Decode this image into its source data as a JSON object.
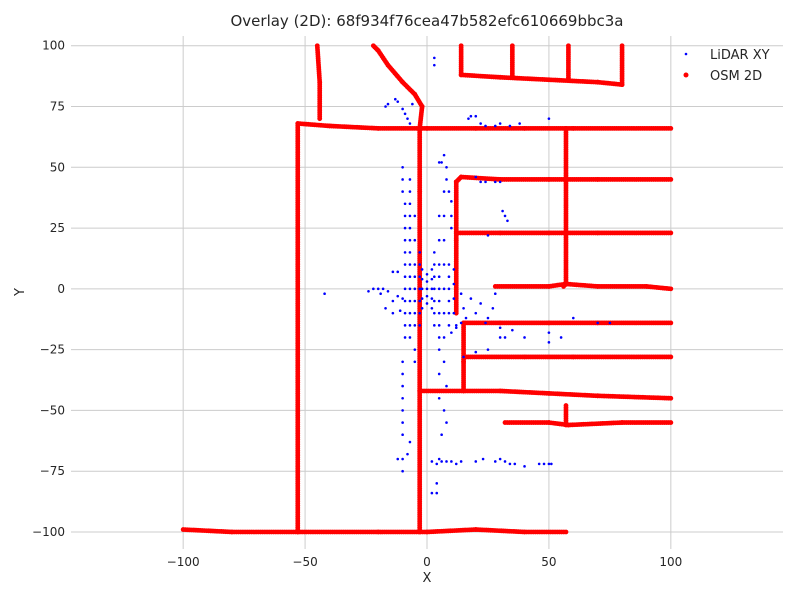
{
  "chart_data": {
    "type": "scatter",
    "title": "Overlay (2D): 68f934f76cea47b582efc610669bbc3a",
    "xlabel": "X",
    "ylabel": "Y",
    "xlim": [
      -146,
      146
    ],
    "ylim": [
      -107,
      104
    ],
    "xticks": [
      -100,
      -50,
      0,
      50,
      100
    ],
    "xtick_labels": [
      "−100",
      "−50",
      "0",
      "50",
      "100"
    ],
    "yticks": [
      -100,
      -75,
      -50,
      -25,
      0,
      25,
      50,
      75,
      100
    ],
    "ytick_labels": [
      "−100",
      "−75",
      "−50",
      "−25",
      "0",
      "25",
      "50",
      "75",
      "100"
    ],
    "grid": true,
    "legend_position": "top-right",
    "series": [
      {
        "name": "LiDAR XY",
        "color": "#0000ff",
        "marker_size": "small",
        "points": [
          [
            -10,
            50
          ],
          [
            -10,
            45
          ],
          [
            -10,
            40
          ],
          [
            -9,
            35
          ],
          [
            -9,
            30
          ],
          [
            -9,
            25
          ],
          [
            -9,
            20
          ],
          [
            -9,
            15
          ],
          [
            -9,
            10
          ],
          [
            -9,
            5
          ],
          [
            -9,
            0
          ],
          [
            -9,
            -5
          ],
          [
            -9,
            -10
          ],
          [
            -9,
            -15
          ],
          [
            -9,
            -20
          ],
          [
            -10,
            -30
          ],
          [
            -10,
            -35
          ],
          [
            -10,
            -40
          ],
          [
            -10,
            -45
          ],
          [
            -10,
            -50
          ],
          [
            -10,
            -55
          ],
          [
            -10,
            -60
          ],
          [
            -10,
            -70
          ],
          [
            -10,
            -75
          ],
          [
            -7,
            45
          ],
          [
            -7,
            40
          ],
          [
            -7,
            35
          ],
          [
            -7,
            30
          ],
          [
            -7,
            25
          ],
          [
            -7,
            20
          ],
          [
            -7,
            15
          ],
          [
            -7,
            10
          ],
          [
            -7,
            5
          ],
          [
            -7,
            0
          ],
          [
            -7,
            -5
          ],
          [
            -7,
            -10
          ],
          [
            -7,
            -15
          ],
          [
            -7,
            -20
          ],
          [
            -5,
            30
          ],
          [
            -5,
            20
          ],
          [
            -5,
            10
          ],
          [
            -5,
            5
          ],
          [
            -5,
            0
          ],
          [
            -5,
            -5
          ],
          [
            -5,
            -10
          ],
          [
            -5,
            -15
          ],
          [
            -5,
            -25
          ],
          [
            -5,
            -30
          ],
          [
            -3,
            15
          ],
          [
            -3,
            10
          ],
          [
            -3,
            5
          ],
          [
            -3,
            0
          ],
          [
            -3,
            -5
          ],
          [
            -3,
            -10
          ],
          [
            -3,
            -15
          ],
          [
            -2,
            8
          ],
          [
            -2,
            4
          ],
          [
            -2,
            0
          ],
          [
            -2,
            -4
          ],
          [
            -2,
            -8
          ],
          [
            0,
            6
          ],
          [
            0,
            3
          ],
          [
            0,
            0
          ],
          [
            0,
            -3
          ],
          [
            0,
            -6
          ],
          [
            2,
            8
          ],
          [
            2,
            4
          ],
          [
            2,
            0
          ],
          [
            2,
            -4
          ],
          [
            2,
            -8
          ],
          [
            3,
            15
          ],
          [
            3,
            10
          ],
          [
            3,
            5
          ],
          [
            3,
            0
          ],
          [
            3,
            -5
          ],
          [
            3,
            -10
          ],
          [
            3,
            -15
          ],
          [
            5,
            30
          ],
          [
            5,
            20
          ],
          [
            5,
            10
          ],
          [
            5,
            5
          ],
          [
            5,
            0
          ],
          [
            5,
            -5
          ],
          [
            5,
            -10
          ],
          [
            5,
            -15
          ],
          [
            5,
            -20
          ],
          [
            5,
            -25
          ],
          [
            5,
            -35
          ],
          [
            5,
            -45
          ],
          [
            7,
            40
          ],
          [
            7,
            30
          ],
          [
            7,
            20
          ],
          [
            7,
            10
          ],
          [
            7,
            0
          ],
          [
            7,
            -10
          ],
          [
            7,
            -20
          ],
          [
            7,
            -30
          ],
          [
            9,
            10
          ],
          [
            9,
            5
          ],
          [
            9,
            0
          ],
          [
            9,
            -5
          ],
          [
            9,
            -10
          ],
          [
            9,
            -15
          ],
          [
            11,
            8
          ],
          [
            11,
            2
          ],
          [
            11,
            -4
          ],
          [
            11,
            -10
          ],
          [
            12,
            -15
          ],
          [
            14,
            -2
          ],
          [
            15,
            -8
          ],
          [
            18,
            -4
          ],
          [
            20,
            -10
          ],
          [
            22,
            -6
          ],
          [
            25,
            -12
          ],
          [
            24,
            -14
          ],
          [
            27,
            -8
          ],
          [
            30,
            -16
          ],
          [
            32,
            -20
          ],
          [
            28,
            -2
          ],
          [
            -18,
            0
          ],
          [
            -16,
            -1
          ],
          [
            -14,
            7
          ],
          [
            -12,
            7
          ],
          [
            -12,
            -3
          ],
          [
            -14,
            -5
          ],
          [
            -20,
            0
          ],
          [
            -22,
            0
          ],
          [
            -24,
            -1
          ],
          [
            -19,
            -2
          ],
          [
            -17,
            -8
          ],
          [
            -14,
            -10
          ],
          [
            -11,
            -9
          ],
          [
            -10,
            -4
          ],
          [
            -12,
            77
          ],
          [
            -13,
            78
          ],
          [
            -16,
            76
          ],
          [
            -17,
            75
          ],
          [
            -10,
            74
          ],
          [
            -9,
            72
          ],
          [
            -8,
            70
          ],
          [
            -7,
            68
          ],
          [
            -6,
            76
          ],
          [
            3,
            92
          ],
          [
            3,
            95
          ],
          [
            5,
            52
          ],
          [
            6,
            52
          ],
          [
            7,
            55
          ],
          [
            8,
            50
          ],
          [
            8,
            45
          ],
          [
            9,
            40
          ],
          [
            10,
            36
          ],
          [
            10,
            30
          ],
          [
            10,
            25
          ],
          [
            8,
            -40
          ],
          [
            7,
            -50
          ],
          [
            8,
            -55
          ],
          [
            6,
            -60
          ],
          [
            5,
            -70
          ],
          [
            4,
            -80
          ],
          [
            4,
            -84
          ],
          [
            2,
            -84
          ],
          [
            2,
            -71
          ],
          [
            4,
            -72
          ],
          [
            6,
            -71
          ],
          [
            8,
            -71
          ],
          [
            10,
            -71
          ],
          [
            12,
            -72
          ],
          [
            14,
            -71
          ],
          [
            20,
            -71
          ],
          [
            23,
            -70
          ],
          [
            28,
            -71
          ],
          [
            30,
            -70
          ],
          [
            32,
            -71
          ],
          [
            34,
            -72
          ],
          [
            36,
            -72
          ],
          [
            40,
            -73
          ],
          [
            46,
            -72
          ],
          [
            48,
            -72
          ],
          [
            50,
            -72
          ],
          [
            51,
            -72
          ],
          [
            17,
            70
          ],
          [
            18,
            71
          ],
          [
            20,
            71
          ],
          [
            22,
            68
          ],
          [
            24,
            67
          ],
          [
            28,
            67
          ],
          [
            30,
            68
          ],
          [
            34,
            67
          ],
          [
            38,
            68
          ],
          [
            50,
            70
          ],
          [
            20,
            46
          ],
          [
            22,
            44
          ],
          [
            24,
            44
          ],
          [
            28,
            44
          ],
          [
            30,
            44
          ],
          [
            25,
            22
          ],
          [
            31,
            32
          ],
          [
            32,
            30
          ],
          [
            33,
            28
          ],
          [
            10,
            -18
          ],
          [
            12,
            -16
          ],
          [
            14,
            -14
          ],
          [
            16,
            -12
          ],
          [
            15,
            -28
          ],
          [
            20,
            -26
          ],
          [
            25,
            -25
          ],
          [
            30,
            -20
          ],
          [
            35,
            -17
          ],
          [
            40,
            -20
          ],
          [
            50,
            -18
          ],
          [
            50,
            -22
          ],
          [
            55,
            -20
          ],
          [
            60,
            -12
          ],
          [
            70,
            -14
          ],
          [
            75,
            -14
          ],
          [
            -42,
            -2
          ],
          [
            -7,
            -63
          ],
          [
            -12,
            -70
          ],
          [
            -8,
            -68
          ]
        ]
      },
      {
        "name": "OSM 2D",
        "color": "#ff0000",
        "marker_size": "medium",
        "polylines": [
          [
            [
              -45,
              100
            ],
            [
              -44,
              85
            ],
            [
              -44,
              70
            ]
          ],
          [
            [
              -22,
              100
            ],
            [
              -20,
              98
            ],
            [
              -16,
              92
            ],
            [
              -10,
              85
            ],
            [
              -5,
              80
            ],
            [
              -2,
              75
            ],
            [
              -3,
              66
            ],
            [
              -3,
              40
            ],
            [
              -3,
              0
            ],
            [
              -3,
              -50
            ],
            [
              -3,
              -100
            ]
          ],
          [
            [
              -53,
              68
            ],
            [
              -53,
              -100
            ]
          ],
          [
            [
              -53,
              68
            ],
            [
              -40,
              67
            ],
            [
              -20,
              66
            ],
            [
              0,
              66
            ],
            [
              20,
              66
            ],
            [
              40,
              66
            ],
            [
              60,
              66
            ],
            [
              100,
              66
            ]
          ],
          [
            [
              -100,
              -99
            ],
            [
              -80,
              -100
            ],
            [
              -53,
              -100
            ],
            [
              -20,
              -100
            ],
            [
              0,
              -100
            ],
            [
              20,
              -99
            ],
            [
              40,
              -100
            ],
            [
              57,
              -100
            ]
          ],
          [
            [
              14,
              100
            ],
            [
              14,
              88
            ],
            [
              30,
              87
            ],
            [
              50,
              86
            ],
            [
              70,
              85
            ],
            [
              80,
              84
            ],
            [
              80,
              100
            ]
          ],
          [
            [
              35,
              100
            ],
            [
              35,
              87
            ]
          ],
          [
            [
              58,
              100
            ],
            [
              58,
              86
            ]
          ],
          [
            [
              12,
              44
            ],
            [
              14,
              46
            ],
            [
              30,
              45
            ],
            [
              50,
              45
            ],
            [
              70,
              45
            ],
            [
              100,
              45
            ]
          ],
          [
            [
              12,
              44
            ],
            [
              12,
              20
            ],
            [
              12,
              -10
            ]
          ],
          [
            [
              12,
              23
            ],
            [
              30,
              23
            ],
            [
              50,
              23
            ],
            [
              70,
              23
            ],
            [
              100,
              23
            ]
          ],
          [
            [
              57,
              66
            ],
            [
              57,
              45
            ],
            [
              57,
              23
            ],
            [
              57,
              2
            ],
            [
              56,
              1
            ]
          ],
          [
            [
              28,
              1
            ],
            [
              50,
              1
            ],
            [
              57,
              2
            ],
            [
              70,
              1
            ],
            [
              90,
              1
            ],
            [
              100,
              0
            ]
          ],
          [
            [
              15,
              -14
            ],
            [
              30,
              -14
            ],
            [
              50,
              -14
            ],
            [
              70,
              -14
            ],
            [
              100,
              -14
            ]
          ],
          [
            [
              15,
              -14
            ],
            [
              15,
              -30
            ],
            [
              15,
              -42
            ]
          ],
          [
            [
              16,
              -28
            ],
            [
              40,
              -28
            ],
            [
              60,
              -28
            ],
            [
              100,
              -28
            ]
          ],
          [
            [
              -3,
              -42
            ],
            [
              15,
              -42
            ],
            [
              30,
              -42
            ],
            [
              50,
              -43
            ],
            [
              70,
              -44
            ],
            [
              100,
              -45
            ]
          ],
          [
            [
              32,
              -55
            ],
            [
              50,
              -55
            ],
            [
              58,
              -56
            ],
            [
              80,
              -55
            ],
            [
              100,
              -55
            ]
          ],
          [
            [
              57,
              -56
            ],
            [
              57,
              -48
            ]
          ]
        ]
      }
    ]
  }
}
